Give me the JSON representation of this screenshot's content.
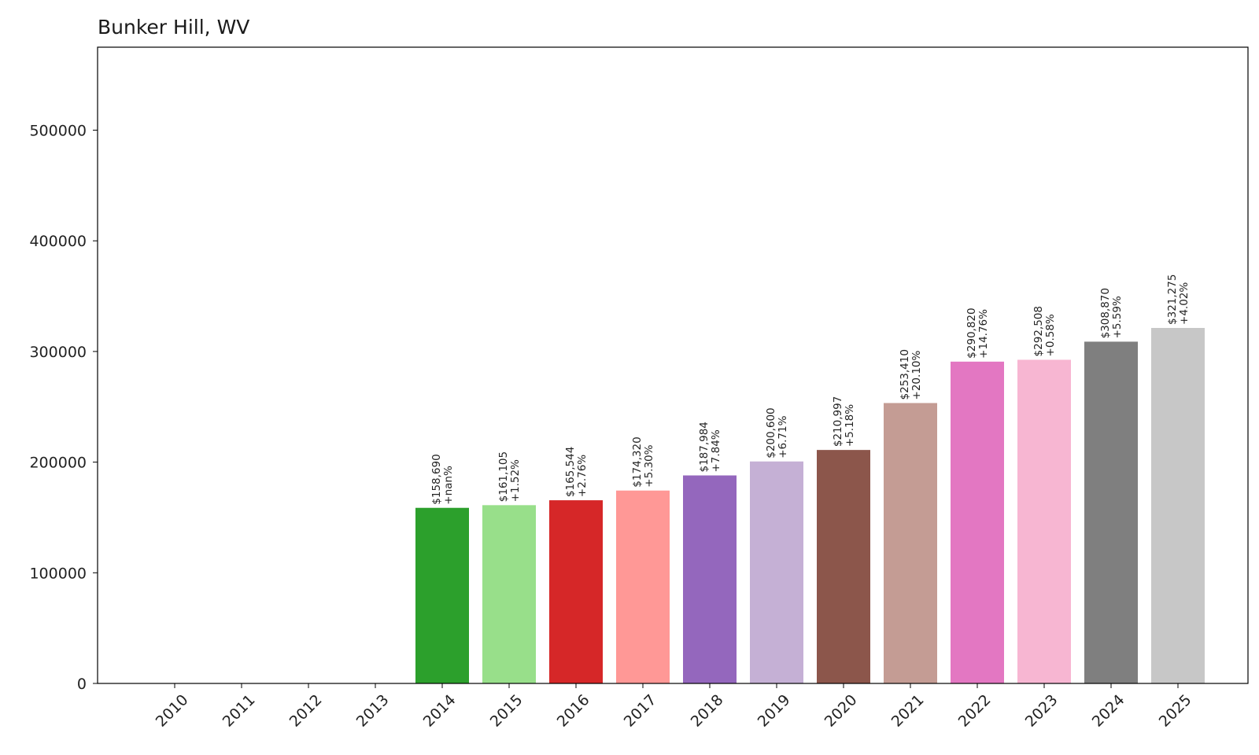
{
  "chart_data": {
    "type": "bar",
    "title": "Bunker Hill, WV",
    "xlabel": "",
    "ylabel": "",
    "categories": [
      "2010",
      "2011",
      "2012",
      "2013",
      "2014",
      "2015",
      "2016",
      "2017",
      "2018",
      "2019",
      "2020",
      "2021",
      "2022",
      "2023",
      "2024",
      "2025"
    ],
    "values": [
      0,
      0,
      0,
      0,
      158690,
      161105,
      165544,
      174320,
      187984,
      200600,
      210997,
      253410,
      290820,
      292508,
      308870,
      321275
    ],
    "value_labels": [
      "",
      "",
      "",
      "",
      "$158,690",
      "$161,105",
      "$165,544",
      "$174,320",
      "$187,984",
      "$200,600",
      "$210,997",
      "$253,410",
      "$290,820",
      "$292,508",
      "$308,870",
      "$321,275"
    ],
    "change_labels": [
      "",
      "",
      "",
      "",
      "+nan%",
      "+1.52%",
      "+2.76%",
      "+5.30%",
      "+7.84%",
      "+6.71%",
      "+5.18%",
      "+20.10%",
      "+14.76%",
      "+0.58%",
      "+5.59%",
      "+4.02%"
    ],
    "colors": [
      "#1f77b4",
      "#aec7e8",
      "#ff7f0e",
      "#ffbb78",
      "#2ca02c",
      "#98df8a",
      "#d62728",
      "#ff9896",
      "#9467bd",
      "#c5b0d5",
      "#8c564b",
      "#c49c94",
      "#e377c2",
      "#f7b6d2",
      "#7f7f7f",
      "#c7c7c7"
    ],
    "yticks": [
      0,
      100000,
      200000,
      300000,
      400000,
      500000
    ],
    "ylim": [
      0,
      575000
    ],
    "grid": false,
    "legend": "none"
  }
}
